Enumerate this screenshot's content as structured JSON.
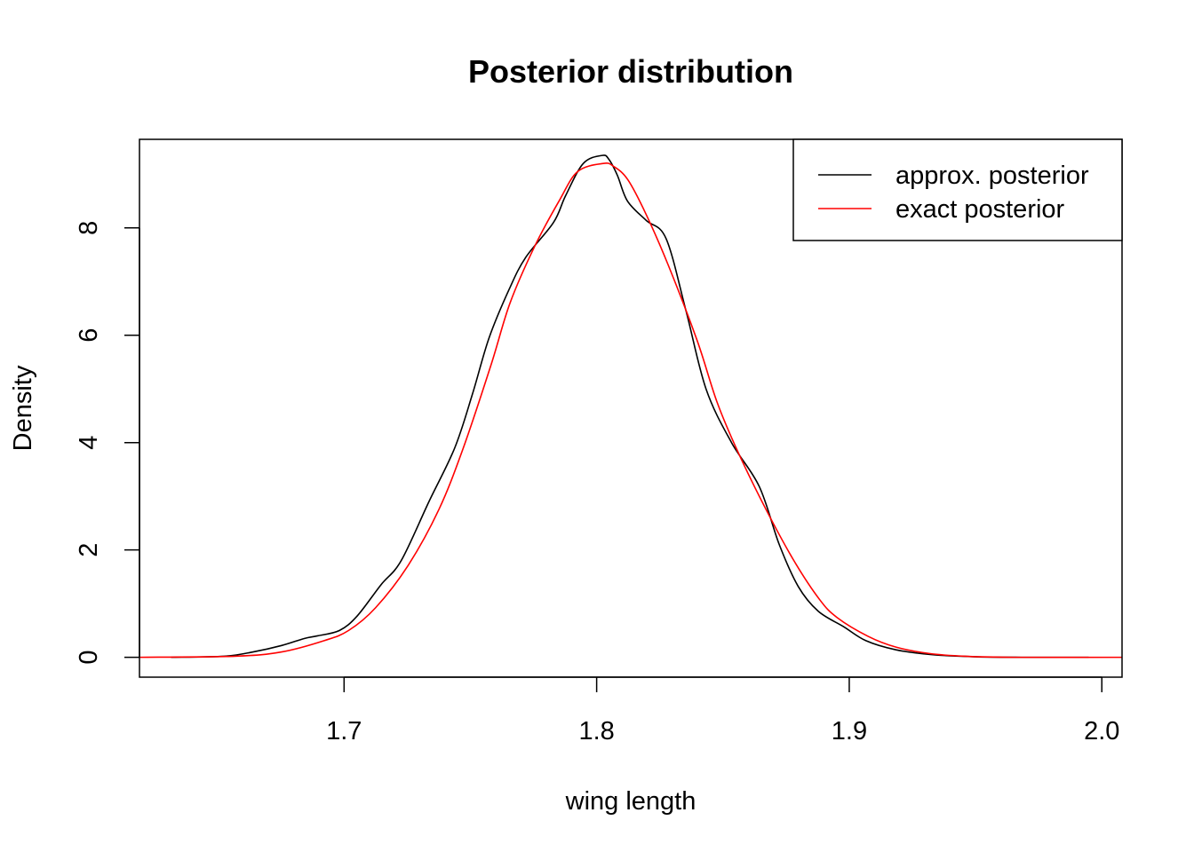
{
  "chart_data": {
    "type": "line",
    "title": "Posterior distribution",
    "xlabel": "wing length",
    "ylabel": "Density",
    "xlim": [
      1.619,
      2.008
    ],
    "ylim": [
      -0.37,
      9.65
    ],
    "x_ticks": [
      1.7,
      1.8,
      1.9,
      2.0
    ],
    "x_tick_labels": [
      "1.7",
      "1.8",
      "1.9",
      "2.0"
    ],
    "y_ticks": [
      0,
      2,
      4,
      6,
      8
    ],
    "y_tick_labels": [
      "0",
      "2",
      "4",
      "6",
      "8"
    ],
    "legend": {
      "placement": "top-right",
      "entries": [
        {
          "label": "approx. posterior",
          "color": "#000000"
        },
        {
          "label": "exact posterior",
          "color": "#ff0000"
        }
      ]
    },
    "series": [
      {
        "name": "approx. posterior",
        "color": "#000000",
        "x": [
          1.6315,
          1.6525,
          1.664,
          1.6753,
          1.6842,
          1.6895,
          1.6982,
          1.7052,
          1.7146,
          1.7226,
          1.7336,
          1.7438,
          1.7508,
          1.7574,
          1.7653,
          1.7719,
          1.7829,
          1.7877,
          1.7947,
          1.8022,
          1.8048,
          1.8082,
          1.8122,
          1.8196,
          1.8275,
          1.8354,
          1.8433,
          1.8534,
          1.8644,
          1.8723,
          1.8798,
          1.8877,
          1.8978,
          1.9066,
          1.9185,
          1.9326,
          1.9497,
          1.9682,
          1.9948
        ],
        "y": [
          0.0,
          0.02,
          0.1,
          0.22,
          0.35,
          0.4,
          0.5,
          0.77,
          1.35,
          1.8,
          2.9,
          3.9,
          4.9,
          5.95,
          6.85,
          7.45,
          8.1,
          8.6,
          9.2,
          9.35,
          9.28,
          8.98,
          8.5,
          8.14,
          7.8,
          6.45,
          5.0,
          4.0,
          3.18,
          2.1,
          1.32,
          0.86,
          0.57,
          0.31,
          0.14,
          0.05,
          0.01,
          0.0,
          0.0
        ]
      },
      {
        "name": "exact posterior",
        "color": "#ff0000",
        "x": [
          1.619,
          1.6568,
          1.6753,
          1.6921,
          1.7018,
          1.7124,
          1.7252,
          1.7375,
          1.7472,
          1.7582,
          1.7657,
          1.7754,
          1.7851,
          1.7925,
          1.8026,
          1.8066,
          1.8123,
          1.8196,
          1.8284,
          1.8398,
          1.8477,
          1.8562,
          1.8671,
          1.8781,
          1.8882,
          1.8952,
          1.9075,
          1.9185,
          1.9318,
          1.9458,
          1.9652,
          2.008
        ],
        "y": [
          0.0,
          0.02,
          0.1,
          0.31,
          0.5,
          0.92,
          1.7,
          2.75,
          3.9,
          5.45,
          6.6,
          7.65,
          8.5,
          9.05,
          9.2,
          9.15,
          8.9,
          8.25,
          7.3,
          5.9,
          4.75,
          3.8,
          2.75,
          1.8,
          1.08,
          0.74,
          0.39,
          0.19,
          0.07,
          0.02,
          0.0,
          0.0
        ]
      }
    ]
  }
}
